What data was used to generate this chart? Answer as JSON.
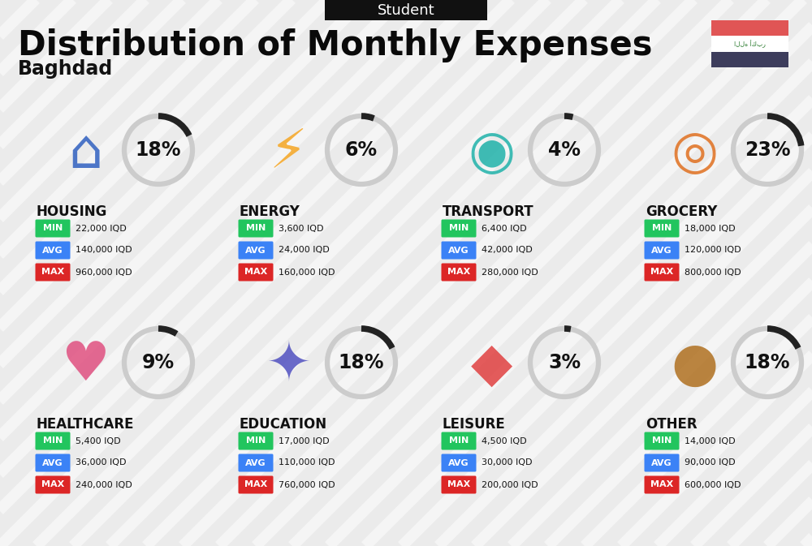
{
  "title": "Distribution of Monthly Expenses",
  "subtitle": "Baghdad",
  "header_label": "Student",
  "bg_color": "#ebebeb",
  "categories": [
    {
      "name": "HOUSING",
      "pct": 18,
      "min_val": "22,000 IQD",
      "avg_val": "140,000 IQD",
      "max_val": "960,000 IQD",
      "col": 0,
      "row": 0
    },
    {
      "name": "ENERGY",
      "pct": 6,
      "min_val": "3,600 IQD",
      "avg_val": "24,000 IQD",
      "max_val": "160,000 IQD",
      "col": 1,
      "row": 0
    },
    {
      "name": "TRANSPORT",
      "pct": 4,
      "min_val": "6,400 IQD",
      "avg_val": "42,000 IQD",
      "max_val": "280,000 IQD",
      "col": 2,
      "row": 0
    },
    {
      "name": "GROCERY",
      "pct": 23,
      "min_val": "18,000 IQD",
      "avg_val": "120,000 IQD",
      "max_val": "800,000 IQD",
      "col": 3,
      "row": 0
    },
    {
      "name": "HEALTHCARE",
      "pct": 9,
      "min_val": "5,400 IQD",
      "avg_val": "36,000 IQD",
      "max_val": "240,000 IQD",
      "col": 0,
      "row": 1
    },
    {
      "name": "EDUCATION",
      "pct": 18,
      "min_val": "17,000 IQD",
      "avg_val": "110,000 IQD",
      "max_val": "760,000 IQD",
      "col": 1,
      "row": 1
    },
    {
      "name": "LEISURE",
      "pct": 3,
      "min_val": "4,500 IQD",
      "avg_val": "30,000 IQD",
      "max_val": "200,000 IQD",
      "col": 2,
      "row": 1
    },
    {
      "name": "OTHER",
      "pct": 18,
      "min_val": "14,000 IQD",
      "avg_val": "90,000 IQD",
      "max_val": "600,000 IQD",
      "col": 3,
      "row": 1
    }
  ],
  "color_min": "#22c55e",
  "color_avg": "#3b82f6",
  "color_max": "#dc2626",
  "color_arc_dark": "#222222",
  "color_arc_light": "#cccccc",
  "flag_red": "#e05555",
  "flag_dark": "#3d3d5c",
  "title_fontsize": 30,
  "subtitle_fontsize": 17,
  "header_fontsize": 13,
  "cat_fontsize": 12,
  "val_fontsize": 10,
  "pct_fontsize": 17,
  "badge_fontsize": 8
}
